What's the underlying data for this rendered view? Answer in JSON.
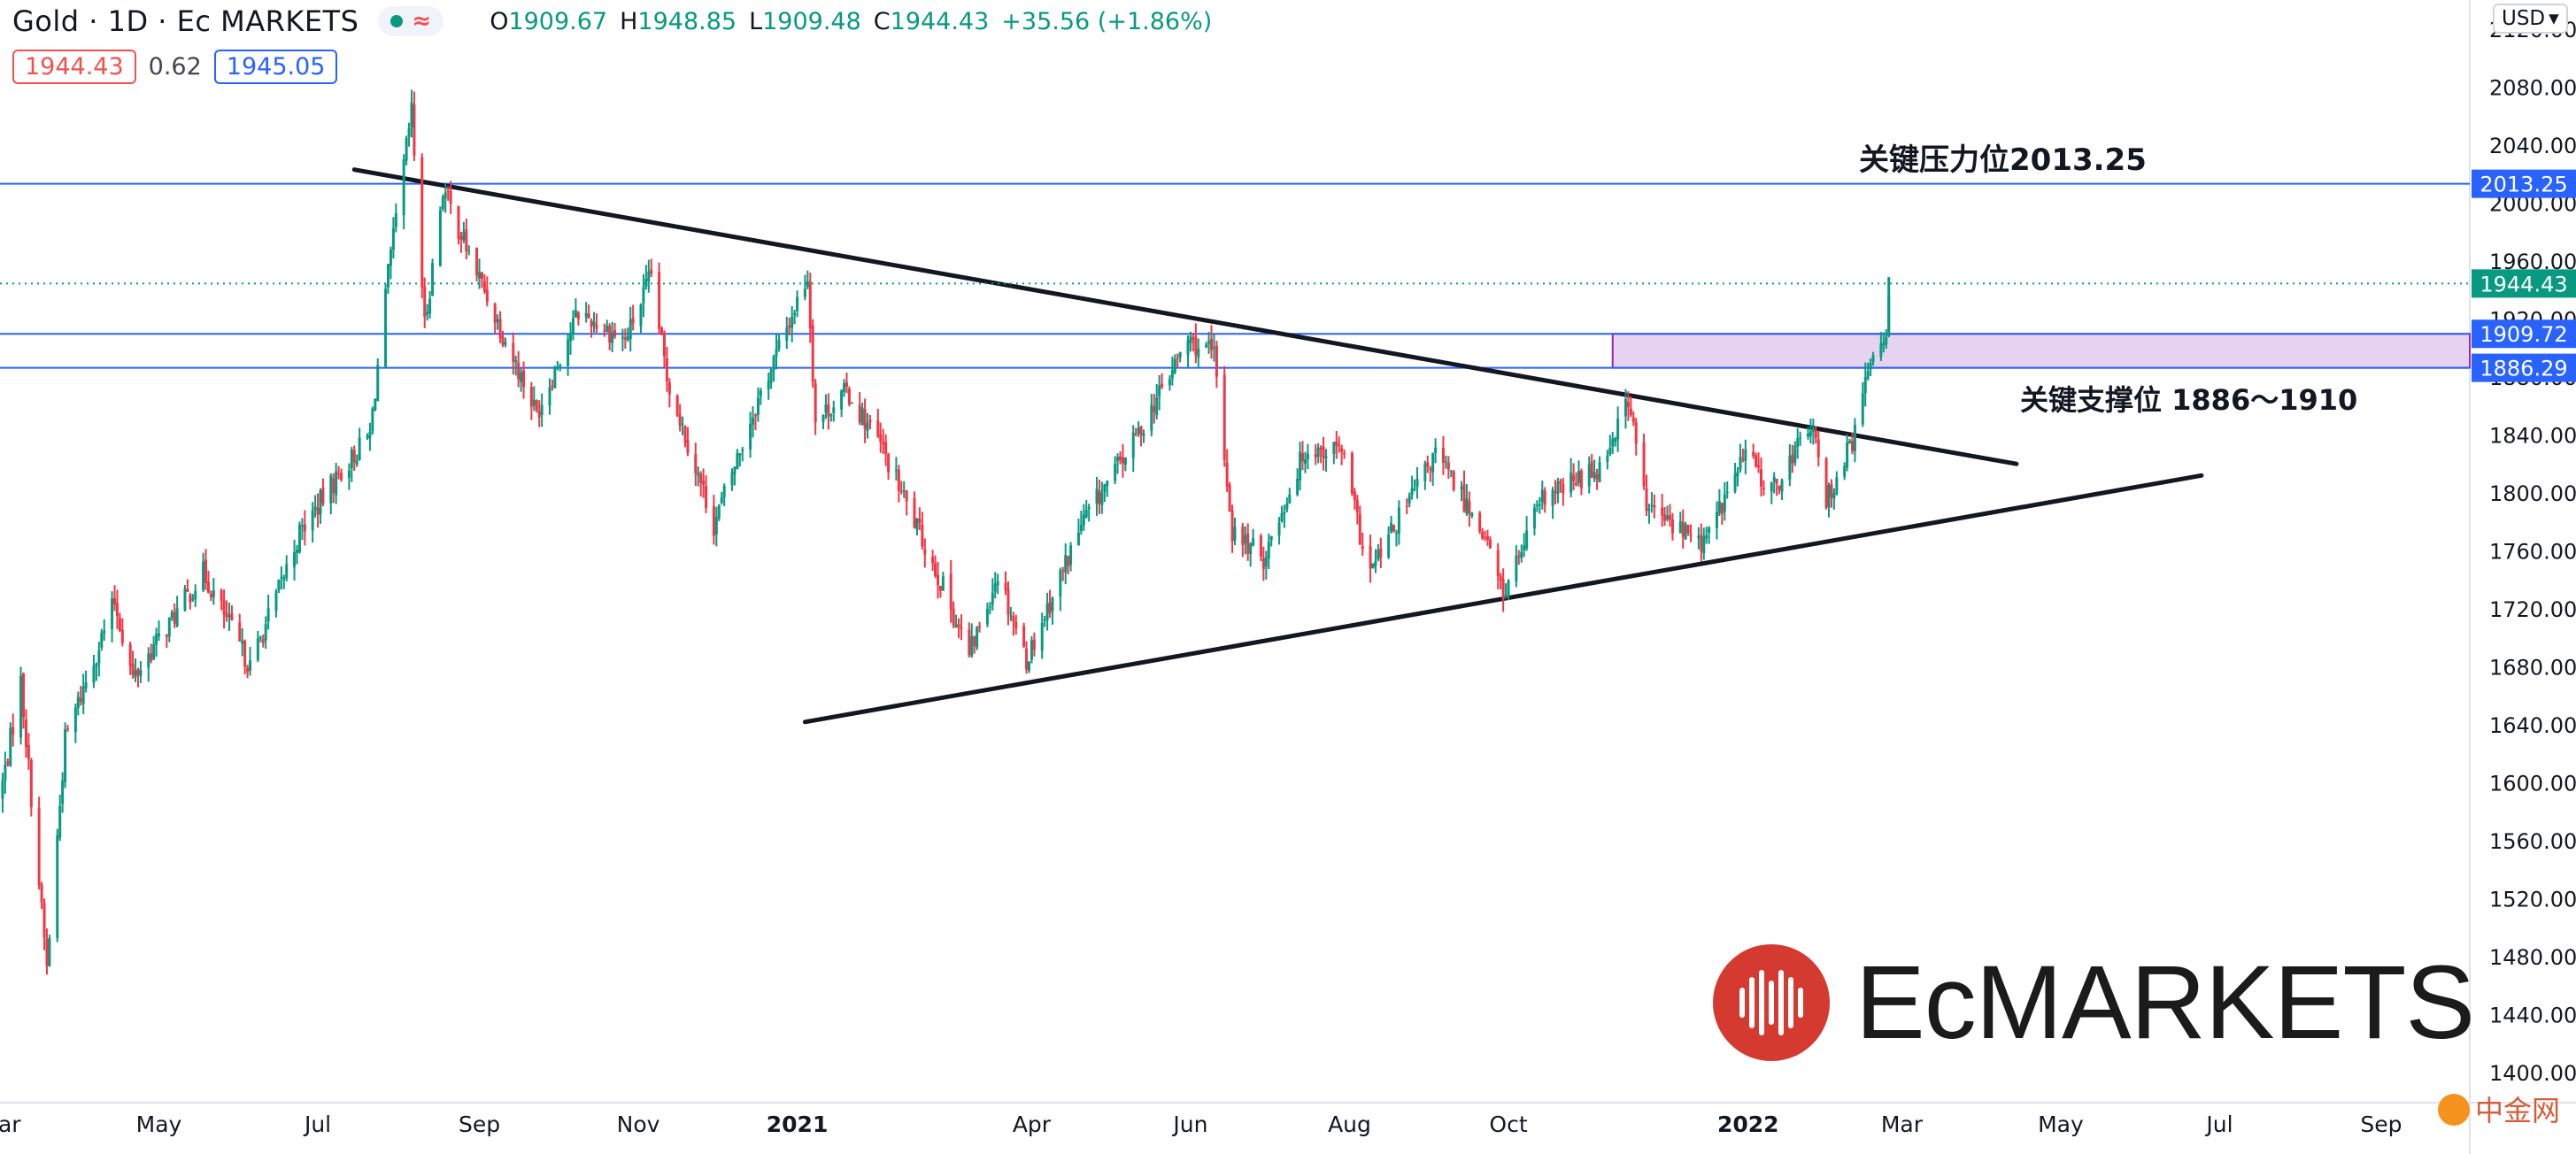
{
  "header": {
    "symbol": "Gold",
    "interval": "1D",
    "broker": "Ec MARKETS",
    "status_symbol": "≈",
    "open_label": "O",
    "open": "1909.67",
    "high_label": "H",
    "high": "1948.85",
    "low_label": "L",
    "low": "1909.48",
    "close_label": "C",
    "close": "1944.43",
    "change": "+35.56 (+1.86%)",
    "sell_price": "1944.43",
    "spread": "0.62",
    "buy_price": "1945.05",
    "currency": "USD"
  },
  "annotations": {
    "resistance_text": "关键压力位2013.25",
    "support_text": "关键支撑位 1886～1910"
  },
  "watermark": {
    "brand": "EcMARKETS",
    "corner_logo": "中金网"
  },
  "colors": {
    "up": "#089981",
    "down": "#f23645",
    "blue": "#2962ff",
    "zone_fill": "#e5d3f0",
    "zone_border": "#9c27b0",
    "trend": "#131722"
  },
  "chart_data": {
    "type": "candlestick",
    "ylim": [
      1380,
      2140
    ],
    "y_ticks": [
      "1400.00",
      "1440.00",
      "1480.00",
      "1520.00",
      "1560.00",
      "1600.00",
      "1640.00",
      "1680.00",
      "1720.00",
      "1760.00",
      "1800.00",
      "1840.00",
      "1880.00",
      "1920.00",
      "1960.00",
      "2000.00",
      "2040.00",
      "2080.00",
      "2120.00"
    ],
    "x_ticks": [
      "Mar",
      "May",
      "Jul",
      "Sep",
      "Nov",
      "2021",
      "Apr",
      "Jun",
      "Aug",
      "Oct",
      "2022",
      "Mar",
      "May",
      "Jul",
      "Sep"
    ],
    "x_range": [
      "2020-03-01",
      "2022-10-05"
    ],
    "price_path": [
      [
        "2020-03-01",
        1590
      ],
      [
        "2020-03-09",
        1670
      ],
      [
        "2020-03-19",
        1472
      ],
      [
        "2020-03-26",
        1630
      ],
      [
        "2020-04-14",
        1725
      ],
      [
        "2020-04-21",
        1672
      ],
      [
        "2020-05-18",
        1745
      ],
      [
        "2020-06-05",
        1680
      ],
      [
        "2020-06-24",
        1772
      ],
      [
        "2020-07-08",
        1810
      ],
      [
        "2020-07-21",
        1840
      ],
      [
        "2020-07-28",
        1950
      ],
      [
        "2020-08-06",
        2063
      ],
      [
        "2020-08-11",
        1915
      ],
      [
        "2020-08-18",
        2010
      ],
      [
        "2020-08-28",
        1965
      ],
      [
        "2020-09-23",
        1855
      ],
      [
        "2020-10-09",
        1925
      ],
      [
        "2020-10-27",
        1905
      ],
      [
        "2020-11-06",
        1950
      ],
      [
        "2020-11-12",
        1880
      ],
      [
        "2020-11-30",
        1778
      ],
      [
        "2020-12-15",
        1855
      ],
      [
        "2021-01-05",
        1950
      ],
      [
        "2021-01-08",
        1850
      ],
      [
        "2021-01-20",
        1870
      ],
      [
        "2021-02-02",
        1833
      ],
      [
        "2021-02-26",
        1735
      ],
      [
        "2021-03-08",
        1688
      ],
      [
        "2021-03-19",
        1745
      ],
      [
        "2021-03-30",
        1685
      ],
      [
        "2021-04-20",
        1778
      ],
      [
        "2021-05-10",
        1835
      ],
      [
        "2021-05-31",
        1905
      ],
      [
        "2021-06-10",
        1895
      ],
      [
        "2021-06-17",
        1773
      ],
      [
        "2021-06-29",
        1755
      ],
      [
        "2021-07-15",
        1830
      ],
      [
        "2021-07-29",
        1830
      ],
      [
        "2021-08-06",
        1763
      ],
      [
        "2021-08-09",
        1745
      ],
      [
        "2021-08-20",
        1782
      ],
      [
        "2021-09-03",
        1827
      ],
      [
        "2021-09-21",
        1775
      ],
      [
        "2021-09-29",
        1730
      ],
      [
        "2021-10-14",
        1795
      ],
      [
        "2021-11-05",
        1818
      ],
      [
        "2021-11-16",
        1865
      ],
      [
        "2021-11-23",
        1790
      ],
      [
        "2021-12-15",
        1765
      ],
      [
        "2021-12-31",
        1828
      ],
      [
        "2022-01-10",
        1800
      ],
      [
        "2022-01-25",
        1848
      ],
      [
        "2022-01-31",
        1795
      ],
      [
        "2022-02-10",
        1835
      ],
      [
        "2022-02-18",
        1898
      ],
      [
        "2022-02-23",
        1910
      ],
      [
        "2022-02-24",
        1944
      ]
    ],
    "last_price": 1944.43,
    "drawings": [
      {
        "type": "hline",
        "value": 2013.25,
        "label": "2013.25"
      },
      {
        "type": "hline",
        "value": 1909.72,
        "label": "1909.72"
      },
      {
        "type": "hline",
        "value": 1886.29,
        "label": "1886.29"
      },
      {
        "type": "zone",
        "from": 1886.29,
        "to": 1909.72,
        "start": "2021-11-10",
        "end": "2022-10-05"
      },
      {
        "type": "trendline",
        "points": [
          [
            "2020-07-15",
            2023
          ],
          [
            "2022-04-14",
            1820
          ]
        ]
      },
      {
        "type": "trendline",
        "points": [
          [
            "2021-01-04",
            1642
          ],
          [
            "2022-06-24",
            1812
          ]
        ]
      }
    ],
    "grid": false
  }
}
